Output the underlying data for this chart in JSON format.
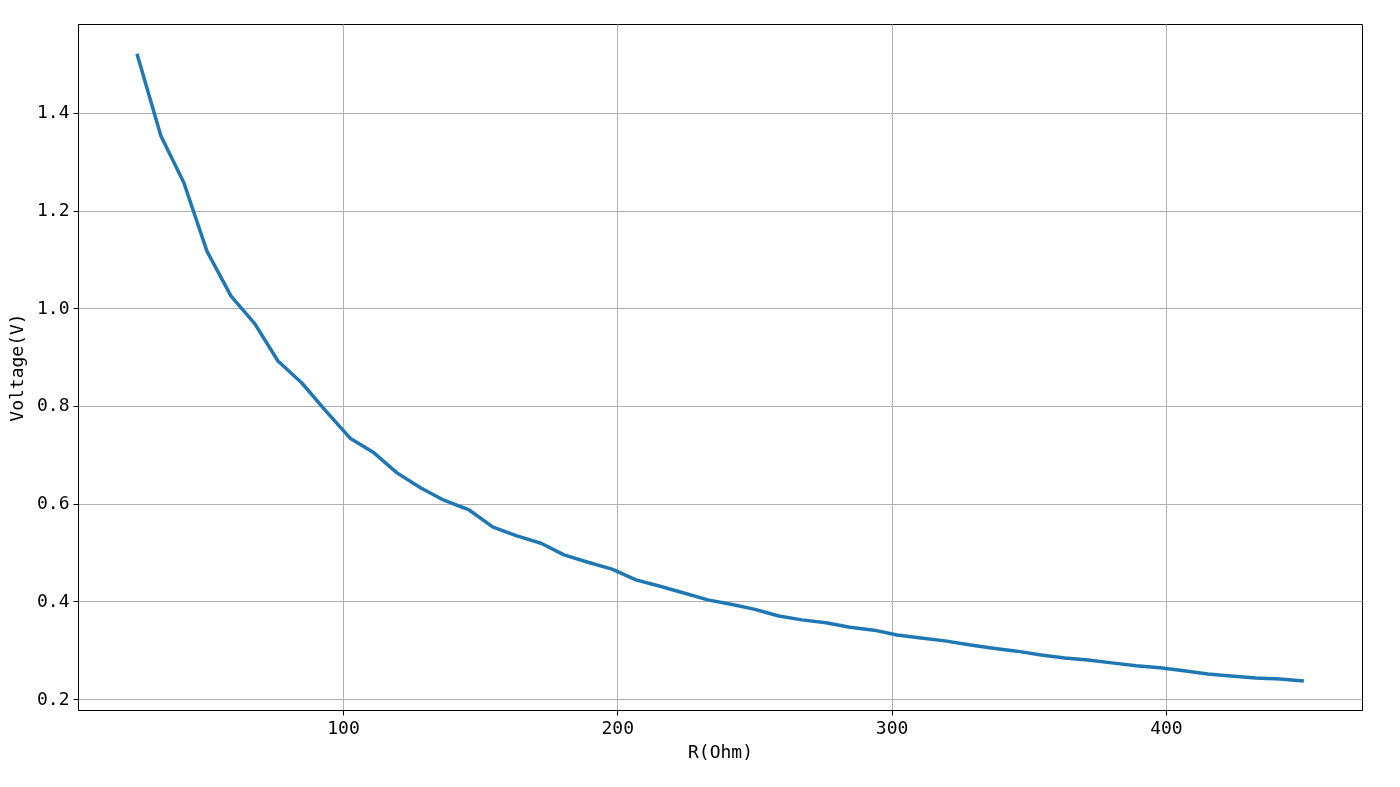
{
  "chart_data": {
    "type": "line",
    "xlabel": "R(Ohm)",
    "ylabel": "Voltage(V)",
    "xlim": [
      3.4,
      471.5
    ],
    "ylim": [
      0.1775,
      1.582
    ],
    "xticks": [
      100,
      200,
      300,
      400
    ],
    "yticks": [
      0.2,
      0.4,
      0.6,
      0.8,
      {
        "value": 1,
        "label": "1.0"
      },
      1.2,
      1.4
    ],
    "grid": true,
    "line_style": "solid",
    "marker": "none",
    "series": [
      {
        "color": "#1f77b4",
        "x": [
          24.9,
          33.6,
          42,
          50.4,
          59.2,
          67.9,
          76.3,
          85,
          93.4,
          102.6,
          111.3,
          119.7,
          128.4,
          136.8,
          146,
          154.7,
          163.4,
          172.2,
          180.6,
          189.3,
          198.1,
          206.8,
          215.6,
          224.3,
          233,
          241.5,
          249.8,
          258.9,
          267.3,
          276.1,
          284.8,
          293.6,
          302,
          310.7,
          319.5,
          328.2,
          337,
          345.7,
          354.5,
          363.2,
          371.6,
          380.3,
          389.1,
          397.8,
          406.6,
          415.3,
          423.7,
          432.8,
          441.6,
          450.3
        ],
        "values": [
          1.521,
          1.353,
          1.257,
          1.117,
          1.025,
          0.968,
          0.892,
          0.847,
          0.792,
          0.734,
          0.704,
          0.663,
          0.632,
          0.607,
          0.587,
          0.552,
          0.534,
          0.519,
          0.495,
          0.48,
          0.466,
          0.444,
          0.431,
          0.417,
          0.403,
          0.394,
          0.384,
          0.37,
          0.362,
          0.356,
          0.347,
          0.341,
          0.331,
          0.325,
          0.319,
          0.311,
          0.304,
          0.298,
          0.29,
          0.284,
          0.28,
          0.274,
          0.268,
          0.264,
          0.258,
          0.251,
          0.247,
          0.243,
          0.241,
          0.237
        ]
      }
    ]
  }
}
